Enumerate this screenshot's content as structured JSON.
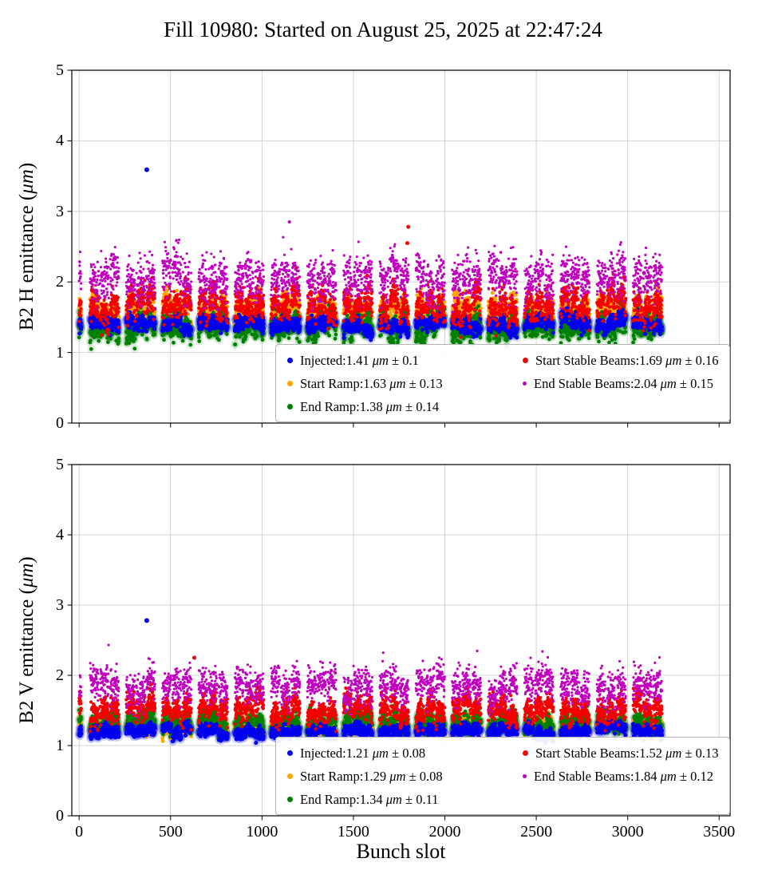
{
  "chart_data": {
    "type": "scatter",
    "title": "Fill 10980: Started on August 25, 2025 at 22:47:24",
    "xlabel": "Bunch slot",
    "xlim": [
      -40,
      3560
    ],
    "ylim": [
      0,
      5
    ],
    "xticks": [
      0,
      500,
      1000,
      1500,
      2000,
      2500,
      3000,
      3500
    ],
    "yticks": [
      0,
      1,
      2,
      3,
      4,
      5
    ],
    "bunch_slot_extent": [
      0,
      3250
    ],
    "grid": true,
    "subplots": [
      {
        "ylabel": {
          "pre": "B2 H emittance (",
          "unit": "μm",
          "post": ")"
        },
        "show_xticklabels": false,
        "series": [
          {
            "name": "Injected",
            "color": "#0000ee",
            "mean": 1.41,
            "std": 0.1,
            "legend": {
              "text": "Injected:1.41 ",
              "unit": "μm",
              "err": " ± 0.1"
            }
          },
          {
            "name": "Start Ramp",
            "color": "#ffa500",
            "mean": 1.63,
            "std": 0.13,
            "legend": {
              "text": "Start Ramp:1.63 ",
              "unit": "μm",
              "err": " ± 0.13"
            }
          },
          {
            "name": "End Ramp",
            "color": "#008000",
            "mean": 1.38,
            "std": 0.14,
            "legend": {
              "text": "End Ramp:1.38 ",
              "unit": "μm",
              "err": " ± 0.14"
            }
          },
          {
            "name": "Start Stable Beams",
            "color": "#f40000",
            "mean": 1.69,
            "std": 0.16,
            "legend": {
              "text": "Start Stable Beams:1.69 ",
              "unit": "μm",
              "err": " ± 0.16"
            }
          },
          {
            "name": "End Stable Beams",
            "color": "#bf00bf",
            "mean": 2.04,
            "std": 0.15,
            "legend": {
              "text": "End Stable Beams:2.04 ",
              "unit": "μm",
              "err": " ± 0.15"
            }
          }
        ],
        "outliers": [
          {
            "series_index": 0,
            "x": 370,
            "y": 3.59
          },
          {
            "series_index": 3,
            "x": 1800,
            "y": 2.78
          },
          {
            "series_index": 3,
            "x": 1795,
            "y": 2.55
          },
          {
            "series_index": 4,
            "x": 1150,
            "y": 2.85
          }
        ]
      },
      {
        "ylabel": {
          "pre": "B2 V emittance (",
          "unit": "μm",
          "post": ")"
        },
        "show_xticklabels": true,
        "series": [
          {
            "name": "Injected",
            "color": "#0000ee",
            "mean": 1.21,
            "std": 0.08,
            "legend": {
              "text": "Injected:1.21 ",
              "unit": "μm",
              "err": " ± 0.08"
            }
          },
          {
            "name": "Start Ramp",
            "color": "#ffa500",
            "mean": 1.29,
            "std": 0.08,
            "legend": {
              "text": "Start Ramp:1.29 ",
              "unit": "μm",
              "err": " ± 0.08"
            }
          },
          {
            "name": "End Ramp",
            "color": "#008000",
            "mean": 1.34,
            "std": 0.11,
            "legend": {
              "text": "End Ramp:1.34 ",
              "unit": "μm",
              "err": " ± 0.11"
            }
          },
          {
            "name": "Start Stable Beams",
            "color": "#f40000",
            "mean": 1.52,
            "std": 0.13,
            "legend": {
              "text": "Start Stable Beams:1.52 ",
              "unit": "μm",
              "err": " ± 0.13"
            }
          },
          {
            "name": "End Stable Beams",
            "color": "#bf00bf",
            "mean": 1.84,
            "std": 0.12,
            "legend": {
              "text": "End Stable Beams:1.84 ",
              "unit": "μm",
              "err": " ± 0.12"
            }
          }
        ],
        "outliers": [
          {
            "series_index": 0,
            "x": 370,
            "y": 2.78
          },
          {
            "series_index": 3,
            "x": 630,
            "y": 2.25
          }
        ]
      }
    ]
  }
}
